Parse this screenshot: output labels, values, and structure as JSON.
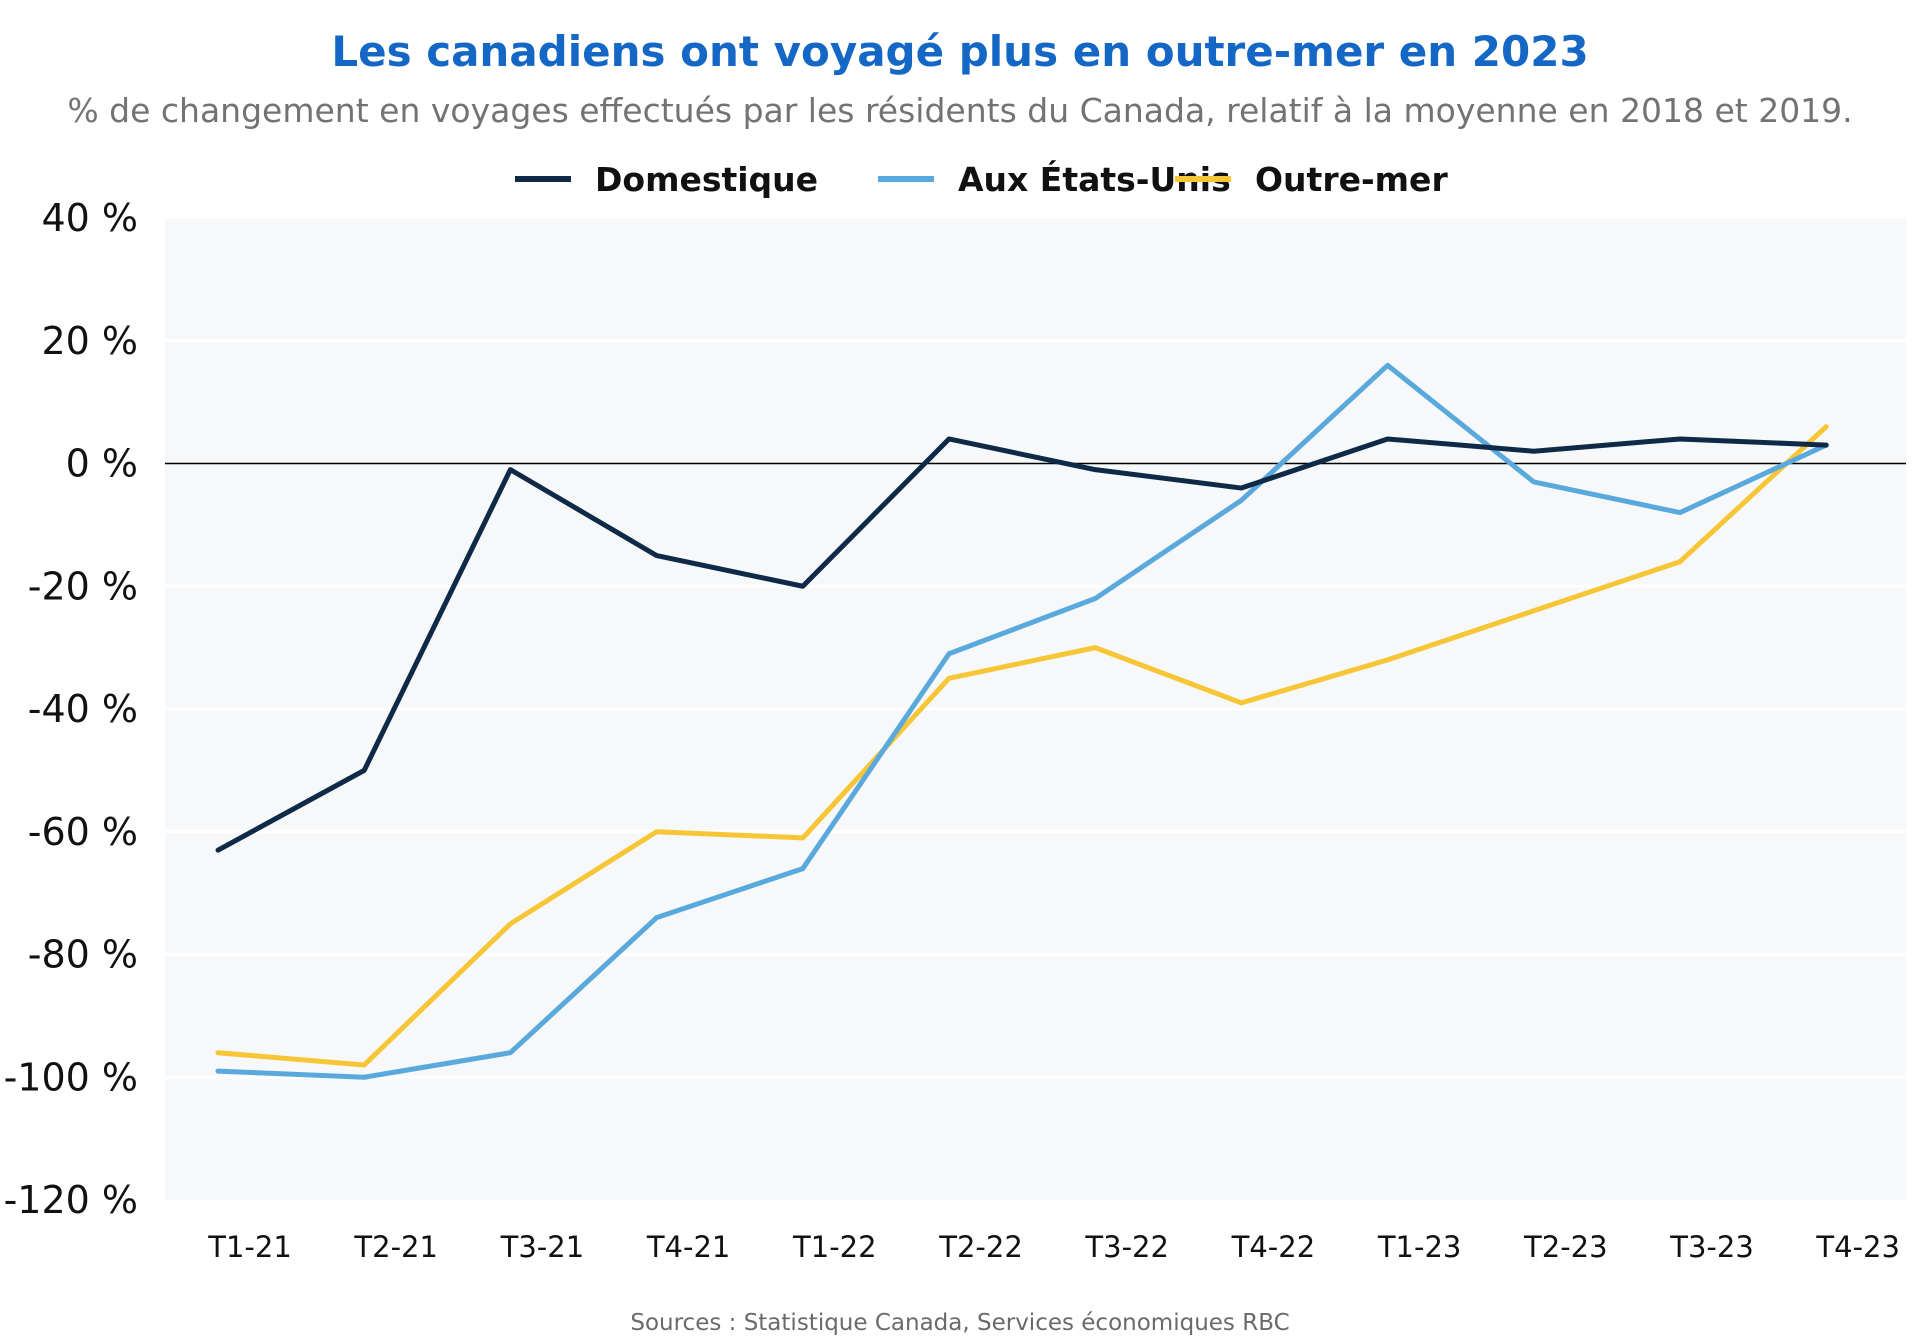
{
  "chart_data": {
    "type": "line",
    "title": "Les canadiens ont voyagé plus en outre-mer en 2023",
    "subtitle": "% de changement en voyages effectués par les résidents du Canada, relatif à la moyenne en 2018 et 2019.",
    "source": "Sources : Statistique Canada, Services économiques RBC",
    "categories": [
      "T1-21",
      "T2-21",
      "T3-21",
      "T4-21",
      "T1-22",
      "T2-22",
      "T3-22",
      "T4-22",
      "T1-23",
      "T2-23",
      "T3-23",
      "T4-23"
    ],
    "ylim": [
      -120,
      40
    ],
    "yticks": [
      40,
      20,
      0,
      -20,
      -40,
      -60,
      -80,
      -100,
      -120
    ],
    "ytick_labels": [
      "40 %",
      "20 %",
      "0 %",
      "-20 %",
      "-40 %",
      "-60 %",
      "-80 %",
      "-100 %",
      "-120 %"
    ],
    "grid": true,
    "legend_position": "top-center",
    "background_color": "#f6f8fa",
    "series": [
      {
        "name": "Domestique",
        "color": "#0e2a47",
        "values": [
          -63,
          -50,
          -1,
          -15,
          -20,
          4,
          -1,
          -4,
          4,
          2,
          4,
          3
        ]
      },
      {
        "name": "Aux États-Unis",
        "color": "#5aa9dc",
        "values": [
          -99,
          -100,
          -96,
          -74,
          -66,
          -31,
          -22,
          -6,
          16,
          -3,
          -8,
          3
        ]
      },
      {
        "name": "Outre-mer",
        "color": "#f6c637",
        "values": [
          -96,
          -98,
          -75,
          -60,
          -61,
          -35,
          -30,
          -39,
          -32,
          -24,
          -16,
          6
        ]
      }
    ]
  }
}
